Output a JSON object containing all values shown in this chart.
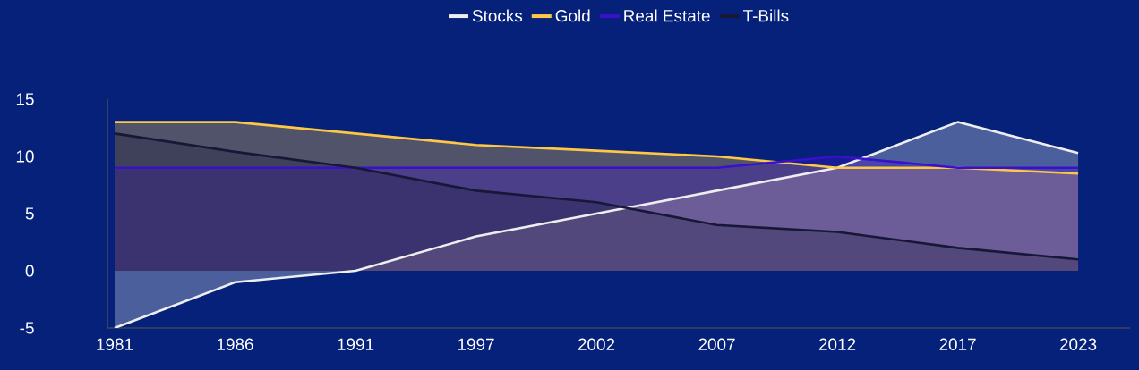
{
  "chart_data": {
    "type": "area",
    "categories": [
      "1981",
      "1986",
      "1991",
      "1997",
      "2002",
      "2007",
      "2012",
      "2017",
      "2023"
    ],
    "series": [
      {
        "name": "Stocks",
        "color": "#eeeeee",
        "values": [
          -5,
          -1,
          0,
          3,
          5,
          7,
          9,
          13,
          10.3
        ]
      },
      {
        "name": "Gold",
        "color": "#ffc844",
        "values": [
          13,
          13,
          12,
          11,
          10.5,
          10,
          9,
          9,
          8.5
        ]
      },
      {
        "name": "Real Estate",
        "color": "#3a10cc",
        "values": [
          9,
          9,
          9,
          9,
          9,
          9,
          10,
          9,
          9
        ]
      },
      {
        "name": "T-Bills",
        "color": "#171738",
        "values": [
          12,
          10.4,
          9,
          7,
          6,
          4,
          3.4,
          2,
          1
        ]
      }
    ],
    "ylim": [
      -5,
      15
    ],
    "yticks": [
      -5,
      0,
      5,
      10,
      15
    ],
    "legend": "top"
  }
}
